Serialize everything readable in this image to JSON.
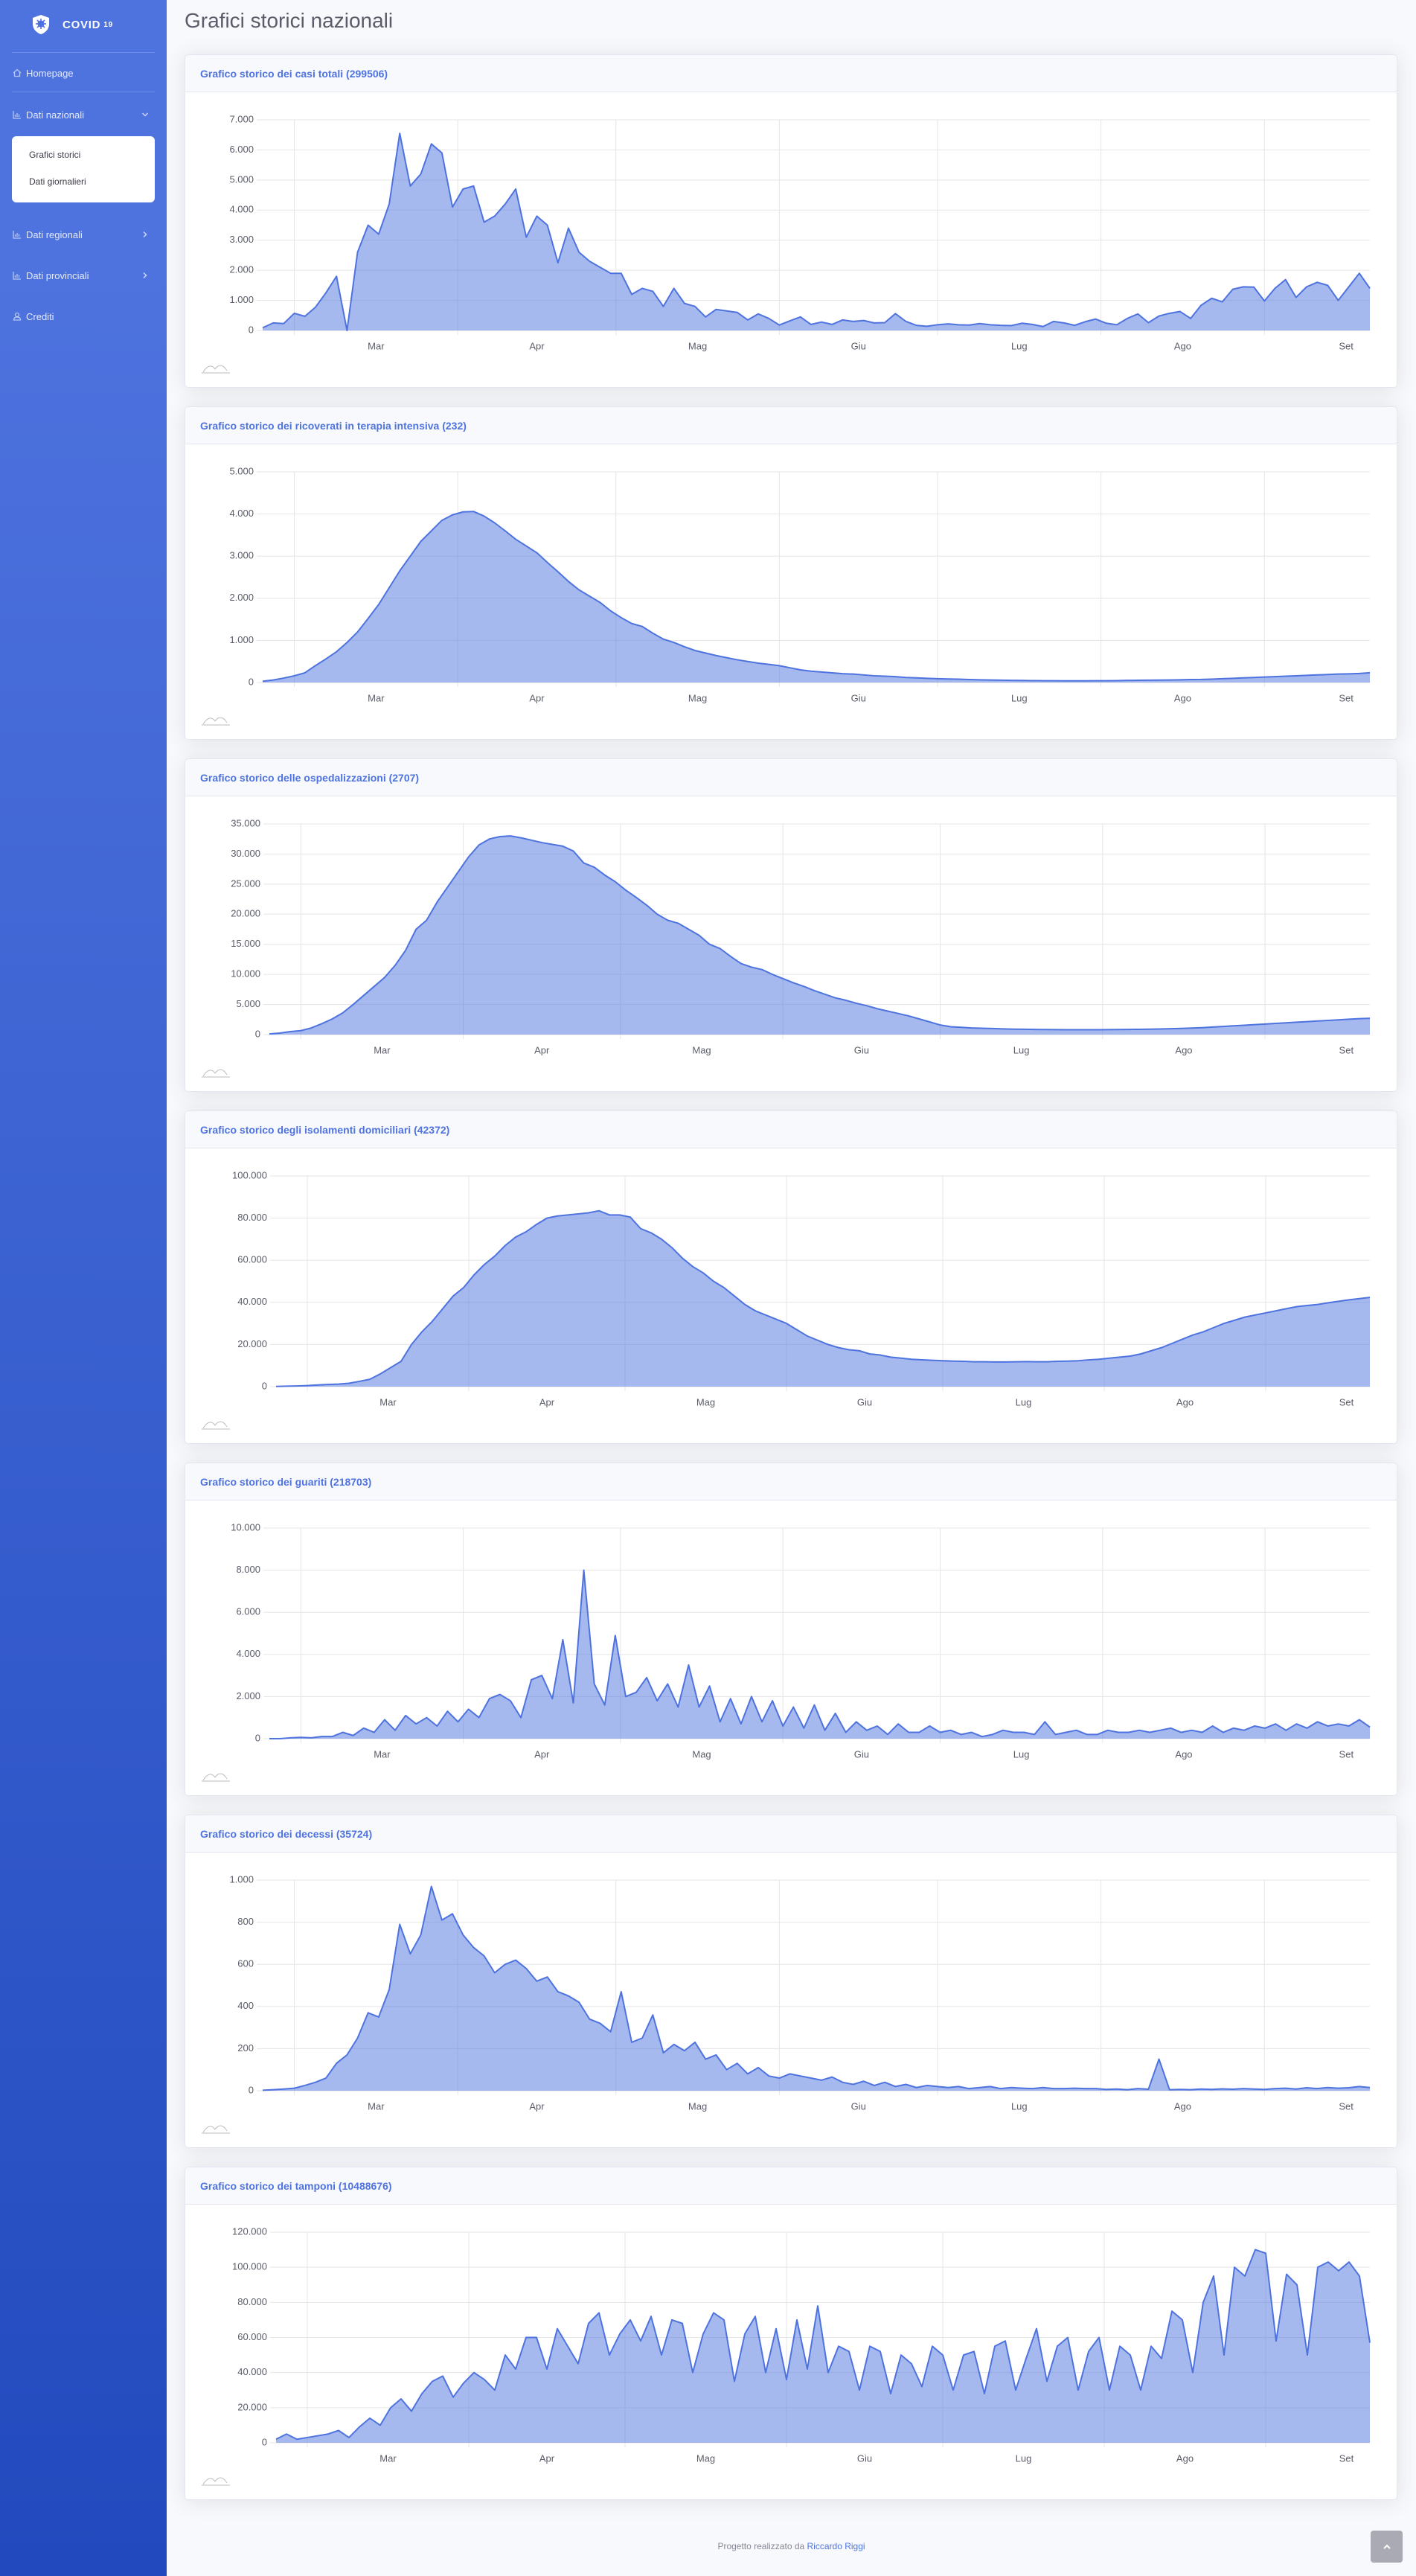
{
  "sidebar": {
    "brand": "COVID",
    "brand_sup": "19",
    "items": [
      {
        "label": "Homepage"
      },
      {
        "label": "Dati nazionali",
        "children": [
          "Grafici storici",
          "Dati giornalieri"
        ]
      },
      {
        "label": "Dati regionali"
      },
      {
        "label": "Dati provinciali"
      },
      {
        "label": "Crediti"
      }
    ]
  },
  "page_title": "Grafici storici nazionali",
  "footer": {
    "text": "Progetto realizzato da",
    "link": "Riccardo Riggi"
  },
  "chart_data": [
    {
      "type": "area",
      "title": "Grafico storico dei casi totali (299506)",
      "color": "#4e73df",
      "grid": true,
      "xlim": [
        0,
        105
      ],
      "xticks": [
        {
          "value": 3,
          "label": "Mar"
        },
        {
          "value": 18.5,
          "label": "Apr"
        },
        {
          "value": 33.5,
          "label": "Mag"
        },
        {
          "value": 49,
          "label": "Giu"
        },
        {
          "value": 64,
          "label": "Lug"
        },
        {
          "value": 79.5,
          "label": "Ago"
        },
        {
          "value": 95,
          "label": "Set"
        }
      ],
      "ylim": [
        0,
        7000
      ],
      "yticks": [
        0,
        {
          "value": 1000,
          "label": "1.000"
        },
        {
          "value": 2000,
          "label": "2.000"
        },
        {
          "value": 3000,
          "label": "3.000"
        },
        {
          "value": 4000,
          "label": "4.000"
        },
        {
          "value": 5000,
          "label": "5.000"
        },
        {
          "value": 6000,
          "label": "6.000"
        },
        {
          "value": 7000,
          "label": "7.000"
        }
      ],
      "values": [
        90,
        250,
        230,
        570,
        470,
        770,
        1250,
        1800,
        0,
        2600,
        3500,
        3200,
        4200,
        6550,
        4800,
        5200,
        6200,
        5900,
        4100,
        4700,
        4800,
        3600,
        3800,
        4200,
        4700,
        3100,
        3800,
        3500,
        2250,
        3400,
        2600,
        2300,
        2100,
        1900,
        1900,
        1200,
        1400,
        1300,
        800,
        1400,
        900,
        800,
        450,
        700,
        650,
        600,
        350,
        550,
        400,
        180,
        320,
        450,
        200,
        280,
        200,
        350,
        300,
        330,
        250,
        260,
        560,
        300,
        170,
        140,
        190,
        220,
        190,
        180,
        230,
        190,
        170,
        160,
        240,
        200,
        130,
        300,
        250,
        170,
        290,
        380,
        240,
        190,
        400,
        550,
        260,
        480,
        570,
        630,
        400,
        840,
        1070,
        950,
        1370,
        1450,
        1440,
        980,
        1400,
        1690,
        1100,
        1450,
        1600,
        1500,
        1000,
        1450,
        1900,
        1400
      ]
    },
    {
      "type": "area",
      "title": "Grafico storico dei ricoverati in terapia intensiva (232)",
      "color": "#4e73df",
      "grid": true,
      "xlim": [
        0,
        105
      ],
      "xticks": [
        {
          "value": 3,
          "label": "Mar"
        },
        {
          "value": 18.5,
          "label": "Apr"
        },
        {
          "value": 33.5,
          "label": "Mag"
        },
        {
          "value": 49,
          "label": "Giu"
        },
        {
          "value": 64,
          "label": "Lug"
        },
        {
          "value": 79.5,
          "label": "Ago"
        },
        {
          "value": 95,
          "label": "Set"
        }
      ],
      "ylim": [
        0,
        5000
      ],
      "yticks": [
        0,
        {
          "value": 1000,
          "label": "1.000"
        },
        {
          "value": 2000,
          "label": "2.000"
        },
        {
          "value": 3000,
          "label": "3.000"
        },
        {
          "value": 4000,
          "label": "4.000"
        },
        {
          "value": 5000,
          "label": "5.000"
        }
      ],
      "values": [
        30,
        60,
        105,
        160,
        230,
        400,
        560,
        730,
        950,
        1200,
        1520,
        1850,
        2250,
        2650,
        3000,
        3350,
        3600,
        3850,
        3980,
        4050,
        4060,
        3950,
        3790,
        3600,
        3400,
        3240,
        3080,
        2850,
        2630,
        2400,
        2200,
        2050,
        1900,
        1700,
        1540,
        1400,
        1330,
        1170,
        1030,
        950,
        850,
        760,
        700,
        640,
        590,
        540,
        500,
        460,
        430,
        400,
        350,
        300,
        270,
        250,
        230,
        210,
        200,
        180,
        160,
        150,
        140,
        120,
        110,
        100,
        90,
        85,
        80,
        70,
        65,
        60,
        55,
        50,
        48,
        45,
        43,
        41,
        40,
        40,
        40,
        41,
        42,
        45,
        50,
        52,
        55,
        58,
        60,
        65,
        70,
        72,
        80,
        90,
        100,
        110,
        120,
        130,
        140,
        150,
        160,
        170,
        180,
        190,
        200,
        205,
        215,
        232
      ]
    },
    {
      "type": "area",
      "title": "Grafico storico delle ospedalizzazioni (2707)",
      "color": "#4e73df",
      "grid": true,
      "xlim": [
        0,
        105
      ],
      "xticks": [
        {
          "value": 3,
          "label": "Mar"
        },
        {
          "value": 18.5,
          "label": "Apr"
        },
        {
          "value": 33.5,
          "label": "Mag"
        },
        {
          "value": 49,
          "label": "Giu"
        },
        {
          "value": 64,
          "label": "Lug"
        },
        {
          "value": 79.5,
          "label": "Ago"
        },
        {
          "value": 95,
          "label": "Set"
        }
      ],
      "ylim": [
        0,
        35000
      ],
      "yticks": [
        0,
        {
          "value": 5000,
          "label": "5.000"
        },
        {
          "value": 10000,
          "label": "10.000"
        },
        {
          "value": 15000,
          "label": "15.000"
        },
        {
          "value": 20000,
          "label": "20.000"
        },
        {
          "value": 25000,
          "label": "25.000"
        },
        {
          "value": 30000,
          "label": "30.000"
        },
        {
          "value": 35000,
          "label": "35.000"
        }
      ],
      "values": [
        110,
        250,
        500,
        650,
        1100,
        1800,
        2600,
        3600,
        5000,
        6500,
        8000,
        9500,
        11500,
        14000,
        17500,
        19000,
        22000,
        24500,
        27000,
        29500,
        31500,
        32500,
        32900,
        33000,
        32700,
        32300,
        31900,
        31600,
        31300,
        30500,
        28500,
        27800,
        26500,
        25400,
        24000,
        22800,
        21500,
        20000,
        19000,
        18500,
        17500,
        16500,
        15000,
        14300,
        13000,
        11800,
        11200,
        10800,
        10000,
        9300,
        8600,
        8000,
        7300,
        6700,
        6100,
        5700,
        5200,
        4800,
        4300,
        3900,
        3500,
        3100,
        2600,
        2100,
        1600,
        1300,
        1200,
        1100,
        1050,
        1000,
        950,
        900,
        880,
        850,
        830,
        820,
        800,
        800,
        800,
        810,
        820,
        830,
        850,
        870,
        900,
        930,
        970,
        1020,
        1080,
        1150,
        1250,
        1350,
        1450,
        1550,
        1650,
        1750,
        1850,
        1950,
        2050,
        2150,
        2250,
        2350,
        2450,
        2550,
        2650,
        2707
      ]
    },
    {
      "type": "area",
      "title": "Grafico storico degli isolamenti domiciliari (42372)",
      "color": "#4e73df",
      "grid": true,
      "xlim": [
        0,
        105
      ],
      "xticks": [
        {
          "value": 3,
          "label": "Mar"
        },
        {
          "value": 18.5,
          "label": "Apr"
        },
        {
          "value": 33.5,
          "label": "Mag"
        },
        {
          "value": 49,
          "label": "Giu"
        },
        {
          "value": 64,
          "label": "Lug"
        },
        {
          "value": 79.5,
          "label": "Ago"
        },
        {
          "value": 95,
          "label": "Set"
        }
      ],
      "ylim": [
        0,
        100000
      ],
      "yticks": [
        0,
        {
          "value": 20000,
          "label": "20.000"
        },
        {
          "value": 40000,
          "label": "40.000"
        },
        {
          "value": 60000,
          "label": "60.000"
        },
        {
          "value": 80000,
          "label": "80.000"
        },
        {
          "value": 100000,
          "label": "100.000"
        }
      ],
      "values": [
        100,
        200,
        300,
        500,
        800,
        1000,
        1200,
        1600,
        2500,
        3500,
        6000,
        9000,
        12000,
        20000,
        26000,
        31000,
        37000,
        43000,
        47000,
        53000,
        58000,
        62000,
        67000,
        71000,
        73500,
        77000,
        80000,
        81000,
        81500,
        82000,
        82500,
        83500,
        81500,
        81500,
        80500,
        75000,
        73000,
        70000,
        66000,
        61000,
        57000,
        54000,
        50000,
        47000,
        43000,
        39000,
        36000,
        34000,
        32000,
        30000,
        27000,
        24000,
        22000,
        20000,
        18500,
        17500,
        17000,
        15500,
        15000,
        14000,
        13500,
        13000,
        12700,
        12500,
        12300,
        12100,
        12000,
        11800,
        11800,
        11700,
        11700,
        11800,
        11900,
        11800,
        11800,
        12000,
        12100,
        12300,
        12700,
        13000,
        13500,
        14000,
        14500,
        15500,
        17000,
        18500,
        20500,
        22500,
        24500,
        26000,
        28000,
        30000,
        31500,
        33000,
        34000,
        35000,
        36000,
        37000,
        38000,
        38500,
        39000,
        39800,
        40500,
        41200,
        41800,
        42372
      ]
    },
    {
      "type": "area",
      "title": "Grafico storico dei guariti (218703)",
      "color": "#4e73df",
      "grid": true,
      "xlim": [
        0,
        105
      ],
      "xticks": [
        {
          "value": 3,
          "label": "Mar"
        },
        {
          "value": 18.5,
          "label": "Apr"
        },
        {
          "value": 33.5,
          "label": "Mag"
        },
        {
          "value": 49,
          "label": "Giu"
        },
        {
          "value": 64,
          "label": "Lug"
        },
        {
          "value": 79.5,
          "label": "Ago"
        },
        {
          "value": 95,
          "label": "Set"
        }
      ],
      "ylim": [
        0,
        10000
      ],
      "yticks": [
        0,
        {
          "value": 2000,
          "label": "2.000"
        },
        {
          "value": 4000,
          "label": "4.000"
        },
        {
          "value": 6000,
          "label": "6.000"
        },
        {
          "value": 8000,
          "label": "8.000"
        },
        {
          "value": 10000,
          "label": "10.000"
        }
      ],
      "values": [
        0,
        0,
        40,
        60,
        40,
        100,
        100,
        300,
        150,
        500,
        300,
        900,
        400,
        1100,
        700,
        1000,
        600,
        1300,
        800,
        1400,
        1000,
        1900,
        2100,
        1800,
        1000,
        2800,
        3000,
        1900,
        4700,
        1700,
        8000,
        2600,
        1600,
        4900,
        2000,
        2200,
        2900,
        1800,
        2600,
        1500,
        3500,
        1500,
        2500,
        800,
        1900,
        700,
        2000,
        800,
        1800,
        600,
        1500,
        500,
        1600,
        400,
        1200,
        300,
        800,
        400,
        600,
        200,
        700,
        300,
        300,
        600,
        300,
        400,
        200,
        300,
        100,
        200,
        400,
        300,
        300,
        200,
        800,
        200,
        300,
        400,
        200,
        200,
        400,
        300,
        300,
        400,
        300,
        400,
        500,
        300,
        400,
        300,
        600,
        300,
        500,
        400,
        600,
        500,
        700,
        400,
        700,
        500,
        800,
        600,
        700,
        600,
        900,
        550
      ]
    },
    {
      "type": "area",
      "title": "Grafico storico dei decessi (35724)",
      "color": "#4e73df",
      "grid": true,
      "xlim": [
        0,
        105
      ],
      "xticks": [
        {
          "value": 3,
          "label": "Mar"
        },
        {
          "value": 18.5,
          "label": "Apr"
        },
        {
          "value": 33.5,
          "label": "Mag"
        },
        {
          "value": 49,
          "label": "Giu"
        },
        {
          "value": 64,
          "label": "Lug"
        },
        {
          "value": 79.5,
          "label": "Ago"
        },
        {
          "value": 95,
          "label": "Set"
        }
      ],
      "ylim": [
        0,
        1000
      ],
      "yticks": [
        0,
        200,
        400,
        600,
        800,
        {
          "value": 1000,
          "label": "1.000"
        }
      ],
      "values": [
        2,
        5,
        8,
        12,
        25,
        40,
        60,
        130,
        170,
        250,
        370,
        350,
        480,
        790,
        650,
        740,
        970,
        810,
        840,
        740,
        680,
        640,
        560,
        600,
        620,
        580,
        520,
        540,
        470,
        450,
        420,
        340,
        320,
        280,
        470,
        230,
        250,
        360,
        180,
        220,
        190,
        230,
        150,
        170,
        100,
        130,
        80,
        110,
        70,
        60,
        80,
        70,
        60,
        50,
        65,
        40,
        30,
        45,
        25,
        40,
        20,
        30,
        15,
        25,
        20,
        15,
        20,
        10,
        15,
        20,
        10,
        15,
        12,
        10,
        15,
        10,
        10,
        12,
        10,
        10,
        6,
        8,
        5,
        10,
        7,
        150,
        5,
        6,
        5,
        8,
        6,
        9,
        7,
        10,
        8,
        6,
        10,
        12,
        8,
        14,
        10,
        15,
        12,
        14,
        20,
        15
      ]
    },
    {
      "type": "area",
      "title": "Grafico storico dei tamponi (10488676)",
      "color": "#4e73df",
      "grid": true,
      "xlim": [
        0,
        105
      ],
      "xticks": [
        {
          "value": 3,
          "label": "Mar"
        },
        {
          "value": 18.5,
          "label": "Apr"
        },
        {
          "value": 33.5,
          "label": "Mag"
        },
        {
          "value": 49,
          "label": "Giu"
        },
        {
          "value": 64,
          "label": "Lug"
        },
        {
          "value": 79.5,
          "label": "Ago"
        },
        {
          "value": 95,
          "label": "Set"
        }
      ],
      "ylim": [
        0,
        120000
      ],
      "yticks": [
        0,
        {
          "value": 20000,
          "label": "20.000"
        },
        {
          "value": 40000,
          "label": "40.000"
        },
        {
          "value": 60000,
          "label": "60.000"
        },
        {
          "value": 80000,
          "label": "80.000"
        },
        {
          "value": 100000,
          "label": "100.000"
        },
        {
          "value": 120000,
          "label": "120.000"
        }
      ],
      "values": [
        2000,
        5000,
        2000,
        3000,
        4000,
        5000,
        7000,
        3000,
        9000,
        14000,
        10000,
        20000,
        25000,
        18000,
        28000,
        35000,
        38000,
        26000,
        34000,
        40000,
        36000,
        30000,
        50000,
        42000,
        60000,
        60000,
        42000,
        65000,
        55000,
        45000,
        68000,
        74000,
        50000,
        62000,
        70000,
        58000,
        72000,
        50000,
        70000,
        68000,
        40000,
        62000,
        74000,
        70000,
        35000,
        62000,
        72000,
        40000,
        65000,
        36000,
        70000,
        42000,
        78000,
        40000,
        55000,
        52000,
        30000,
        55000,
        52000,
        28000,
        50000,
        45000,
        32000,
        55000,
        50000,
        30000,
        50000,
        52000,
        28000,
        55000,
        58000,
        30000,
        48000,
        65000,
        35000,
        55000,
        60000,
        30000,
        52000,
        60000,
        30000,
        55000,
        50000,
        30000,
        55000,
        48000,
        75000,
        70000,
        40000,
        80000,
        95000,
        50000,
        100000,
        95000,
        110000,
        108000,
        58000,
        96000,
        90000,
        50000,
        100000,
        103000,
        98000,
        103000,
        95000,
        57000
      ]
    }
  ]
}
